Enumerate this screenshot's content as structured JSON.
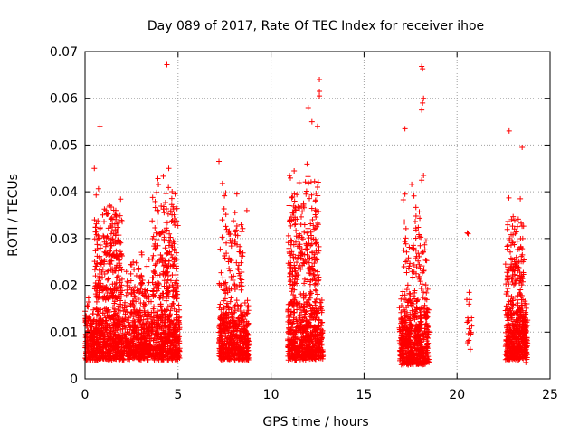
{
  "chart_data": {
    "type": "scatter",
    "title": "Day 089 of 2017, Rate Of TEC Index for receiver ihoe",
    "xlabel": "GPS time / hours",
    "ylabel": "ROTI / TECUs",
    "xlim": [
      0,
      25
    ],
    "ylim": [
      0,
      0.07
    ],
    "x_ticks": [
      0,
      5,
      10,
      15,
      20,
      25
    ],
    "y_ticks": [
      0,
      0.01,
      0.02,
      0.03,
      0.04,
      0.05,
      0.06,
      0.07
    ],
    "x_tick_labels": [
      "0",
      "5",
      "10",
      "15",
      "20",
      "25"
    ],
    "y_tick_labels": [
      "0",
      "0.01",
      "0.02",
      "0.03",
      "0.04",
      "0.05",
      "0.06",
      "0.07"
    ],
    "grid": true,
    "marker": "+",
    "color": "#ff0000",
    "clusters": [
      {
        "x_range": [
          0.0,
          5.1
        ],
        "y_range": [
          0.004,
          0.018
        ],
        "count": 1400
      },
      {
        "x_range": [
          0.5,
          2.0
        ],
        "y_range": [
          0.017,
          0.042
        ],
        "count": 260
      },
      {
        "x_range": [
          3.6,
          5.0
        ],
        "y_range": [
          0.017,
          0.045
        ],
        "count": 200
      },
      {
        "x_range": [
          2.2,
          3.5
        ],
        "y_range": [
          0.017,
          0.028
        ],
        "count": 60
      },
      {
        "x_range": [
          7.2,
          8.8
        ],
        "y_range": [
          0.004,
          0.018
        ],
        "count": 500
      },
      {
        "x_range": [
          7.2,
          8.5
        ],
        "y_range": [
          0.018,
          0.042
        ],
        "count": 90
      },
      {
        "x_range": [
          10.9,
          12.8
        ],
        "y_range": [
          0.004,
          0.02
        ],
        "count": 600
      },
      {
        "x_range": [
          10.9,
          12.6
        ],
        "y_range": [
          0.02,
          0.047
        ],
        "count": 220
      },
      {
        "x_range": [
          16.9,
          18.5
        ],
        "y_range": [
          0.003,
          0.02
        ],
        "count": 550
      },
      {
        "x_range": [
          17.1,
          18.4
        ],
        "y_range": [
          0.02,
          0.044
        ],
        "count": 70
      },
      {
        "x_range": [
          20.5,
          20.8
        ],
        "y_range": [
          0.006,
          0.019
        ],
        "count": 18
      },
      {
        "x_range": [
          22.6,
          23.8
        ],
        "y_range": [
          0.004,
          0.02
        ],
        "count": 450
      },
      {
        "x_range": [
          22.6,
          23.6
        ],
        "y_range": [
          0.02,
          0.039
        ],
        "count": 110
      }
    ],
    "outliers": [
      {
        "x": 0.8,
        "y": 0.054
      },
      {
        "x": 0.5,
        "y": 0.045
      },
      {
        "x": 4.4,
        "y": 0.0672
      },
      {
        "x": 4.5,
        "y": 0.045
      },
      {
        "x": 7.2,
        "y": 0.0465
      },
      {
        "x": 8.7,
        "y": 0.036
      },
      {
        "x": 12.0,
        "y": 0.058
      },
      {
        "x": 12.2,
        "y": 0.055
      },
      {
        "x": 12.6,
        "y": 0.064
      },
      {
        "x": 12.6,
        "y": 0.0615
      },
      {
        "x": 12.6,
        "y": 0.0605
      },
      {
        "x": 12.5,
        "y": 0.054
      },
      {
        "x": 12.5,
        "y": 0.041
      },
      {
        "x": 17.2,
        "y": 0.0535
      },
      {
        "x": 18.1,
        "y": 0.0668
      },
      {
        "x": 18.15,
        "y": 0.0663
      },
      {
        "x": 18.2,
        "y": 0.06
      },
      {
        "x": 18.15,
        "y": 0.059
      },
      {
        "x": 18.1,
        "y": 0.0575
      },
      {
        "x": 18.2,
        "y": 0.0435
      },
      {
        "x": 18.1,
        "y": 0.0425
      },
      {
        "x": 17.2,
        "y": 0.0395
      },
      {
        "x": 20.6,
        "y": 0.031
      },
      {
        "x": 20.55,
        "y": 0.0312
      },
      {
        "x": 20.65,
        "y": 0.0185
      },
      {
        "x": 22.8,
        "y": 0.053
      },
      {
        "x": 23.5,
        "y": 0.0495
      },
      {
        "x": 23.4,
        "y": 0.0385
      },
      {
        "x": 23.7,
        "y": 0.0035
      }
    ]
  }
}
